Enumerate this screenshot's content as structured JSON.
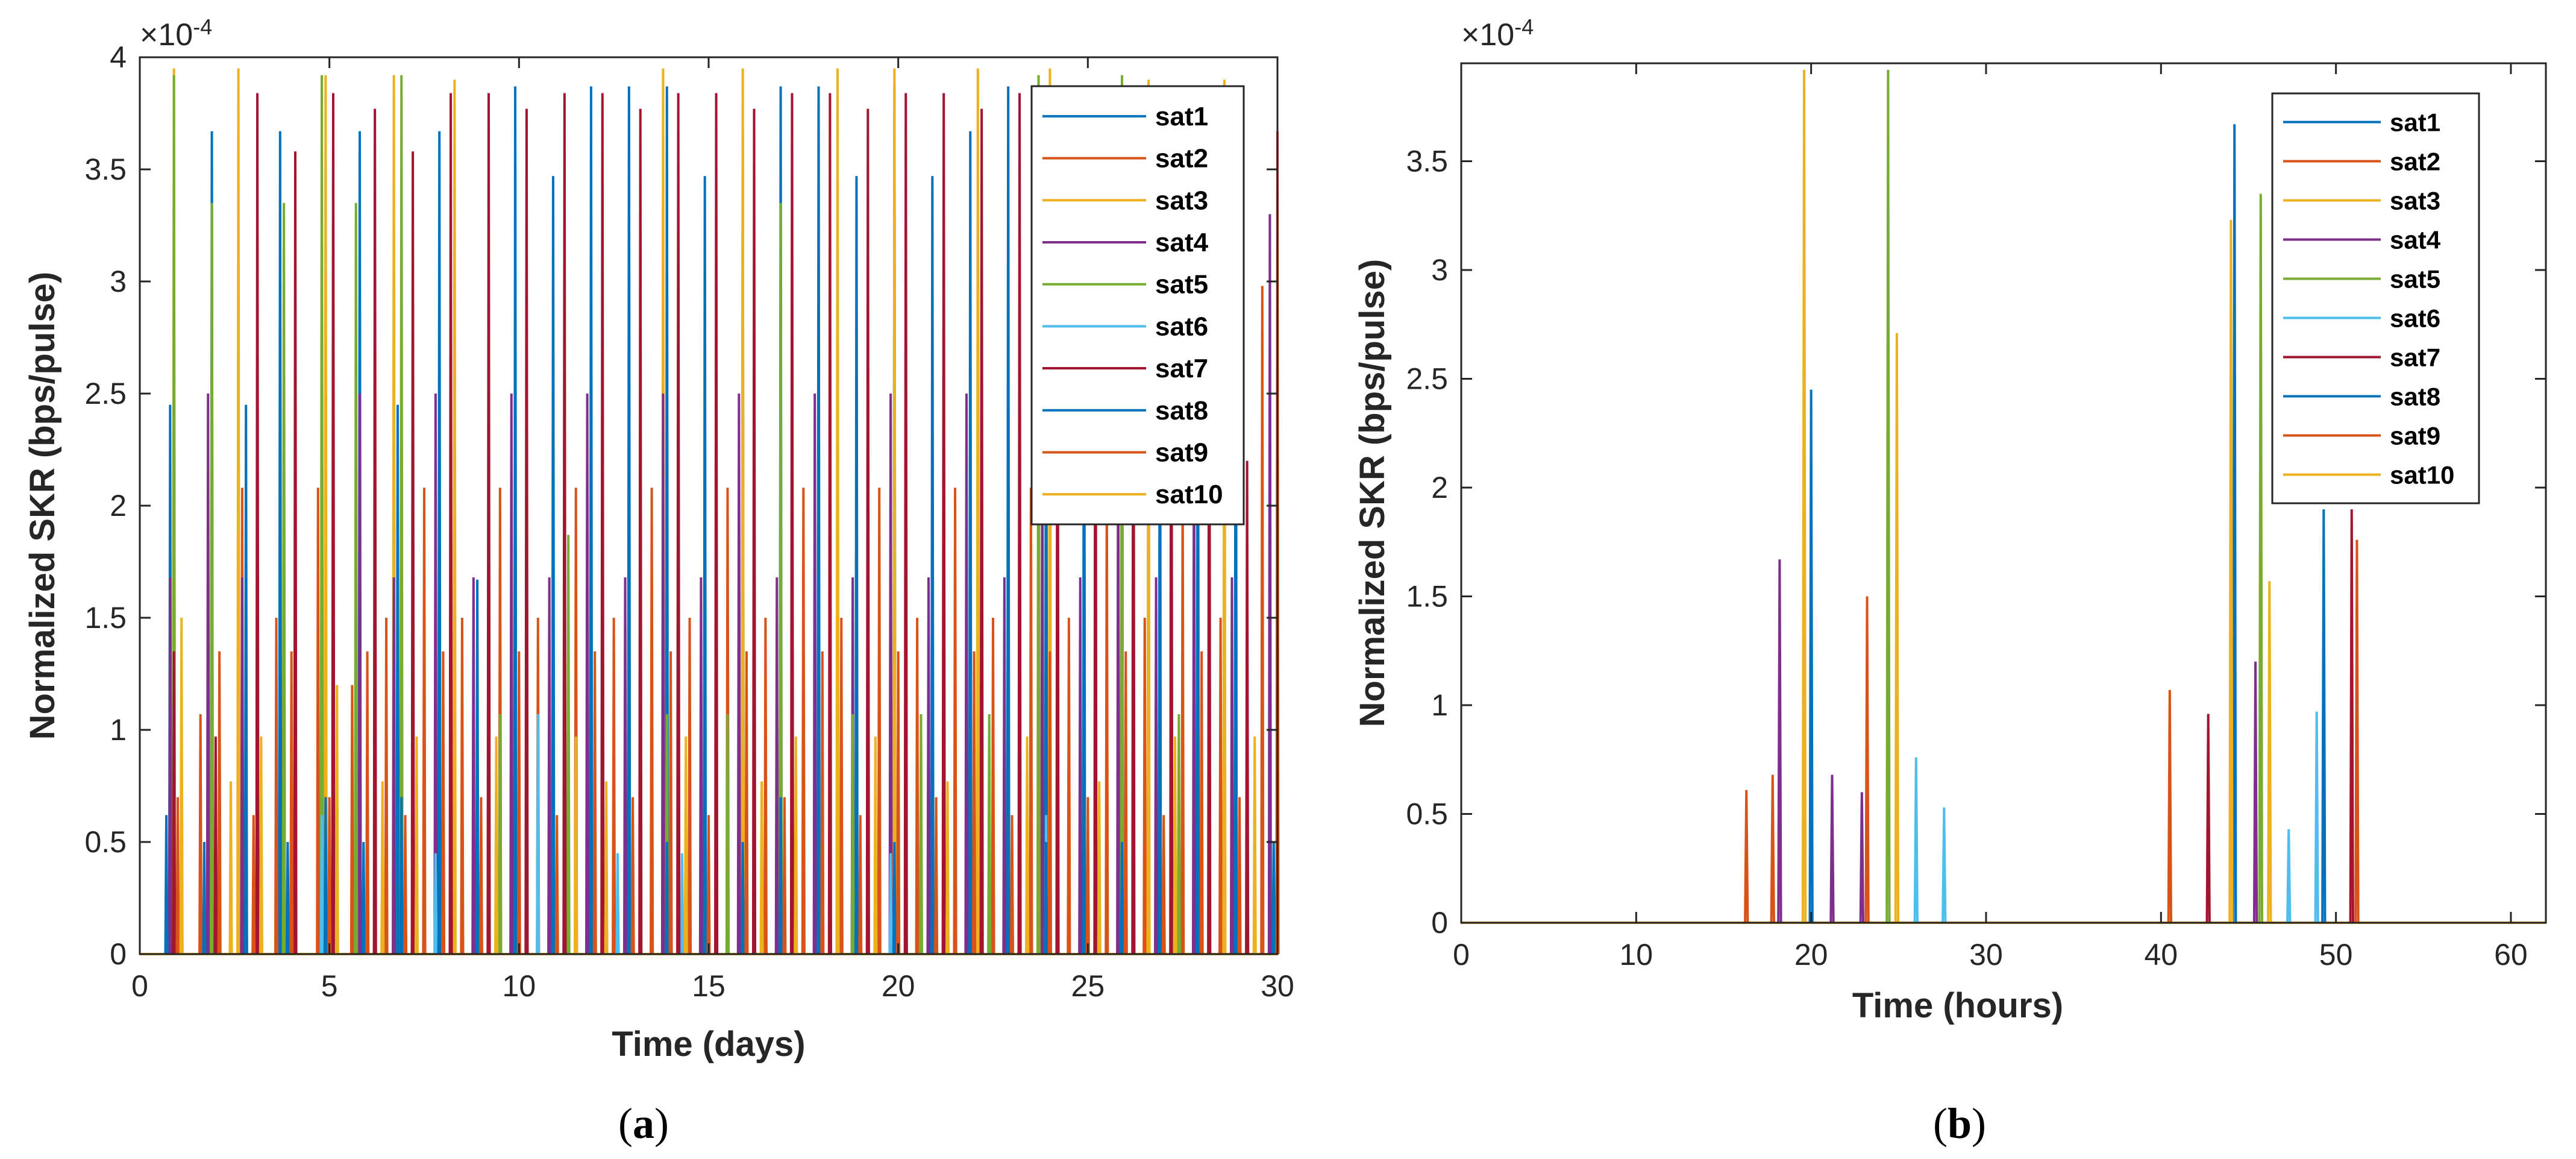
{
  "colors": [
    "#0072BD",
    "#D95319",
    "#EDB120",
    "#7E2F8E",
    "#77AC30",
    "#4DBEEE",
    "#A2142F",
    "#0072BD",
    "#D95319",
    "#EDB120"
  ],
  "chart_data": [
    {
      "type": "line",
      "panel_caption": [
        "(",
        "a",
        ")"
      ],
      "xlabel": "Time (days)",
      "ylabel": "Normalized SKR (bps/pulse)",
      "exponent_label": [
        "×10",
        "-4"
      ],
      "xlim": [
        0,
        30
      ],
      "ylim": [
        0,
        4
      ],
      "xticks": [
        "0",
        "5",
        "10",
        "15",
        "20",
        "25",
        "30"
      ],
      "yticks": [
        "0",
        "0.5",
        "1",
        "1.5",
        "2",
        "2.5",
        "3",
        "3.5",
        "4"
      ],
      "legend": [
        "sat1",
        "sat2",
        "sat3",
        "sat4",
        "sat5",
        "sat6",
        "sat7",
        "sat8",
        "sat9",
        "sat10"
      ],
      "legend_position": "top-right",
      "spike_width": 0.05,
      "series": [
        {
          "name": "sat1",
          "x": [
            0.8,
            1.9,
            2.8,
            3.7,
            4.9,
            5.8,
            6.8,
            7.9,
            8.9,
            9.9,
            10.9,
            11.9,
            12.9,
            13.9,
            14.9,
            15.9,
            16.9,
            17.9,
            18.9,
            19.9,
            20.9,
            21.9,
            22.9,
            23.9,
            24.9,
            25.9,
            26.9,
            27.9,
            28.9
          ],
          "y": [
            2.45,
            3.67,
            2.45,
            3.67,
            2.45,
            3.67,
            2.45,
            3.67,
            1.67,
            3.87,
            3.47,
            3.87,
            3.87,
            3.87,
            3.47,
            3.67,
            3.87,
            3.87,
            3.47,
            3.87,
            3.47,
            3.67,
            3.87,
            3.47,
            3.67,
            3.67,
            3.47,
            3.67,
            3.67
          ]
        },
        {
          "name": "sat2",
          "x": [
            1.6,
            2.7,
            3.6,
            4.7,
            5.6,
            6.5,
            7.5,
            8.5,
            9.5,
            10.5,
            11.5,
            12.5,
            13.5,
            14.5,
            15.5,
            16.5,
            17.5,
            18.5,
            19.5,
            20.5,
            21.5,
            22.5,
            23.5,
            24.5,
            25.5,
            26.5,
            27.5,
            28.5,
            29.6
          ],
          "y": [
            1.07,
            2.08,
            1.5,
            2.08,
            1.2,
            1.5,
            2.08,
            1.5,
            2.08,
            1.5,
            2.08,
            1.5,
            2.08,
            1.5,
            2.08,
            1.5,
            2.08,
            1.5,
            2.08,
            1.5,
            2.08,
            1.5,
            2.08,
            1.5,
            2.08,
            1.5,
            2.08,
            1.5,
            2.98
          ]
        },
        {
          "name": "sat3",
          "x": [
            0.9,
            2.6,
            4.9,
            6.7,
            8.3,
            13.8,
            15.9,
            18.4,
            19.9,
            22.1,
            24.0,
            26.6,
            28.6
          ],
          "y": [
            3.95,
            3.95,
            3.92,
            3.92,
            3.9,
            3.95,
            3.95,
            3.95,
            3.95,
            3.95,
            3.95,
            3.9,
            3.9
          ]
        },
        {
          "name": "sat4",
          "x": [
            0.8,
            1.8,
            2.7,
            3.8,
            4.8,
            5.8,
            6.7,
            7.8,
            8.8,
            9.8,
            10.8,
            11.8,
            12.8,
            13.8,
            14.8,
            15.8,
            16.8,
            17.8,
            18.8,
            19.8,
            20.8,
            21.8,
            22.8,
            23.8,
            24.8,
            25.8,
            26.8,
            27.8,
            28.8,
            29.8
          ],
          "y": [
            1.68,
            2.5,
            1.68,
            2.5,
            1.68,
            2.5,
            1.68,
            2.5,
            1.68,
            2.5,
            1.68,
            2.5,
            1.68,
            2.5,
            1.68,
            2.5,
            1.68,
            2.5,
            1.68,
            2.5,
            1.68,
            2.5,
            1.68,
            2.5,
            1.68,
            2.5,
            1.68,
            2.5,
            1.68,
            3.3
          ]
        },
        {
          "name": "sat5",
          "x": [
            0.9,
            1.9,
            3.8,
            4.8,
            5.7,
            6.9,
            9.5,
            11.3,
            13.9,
            15.5,
            16.9,
            18.8,
            20.6,
            22.4,
            23.7,
            25.9,
            27.4
          ],
          "y": [
            3.92,
            3.35,
            3.35,
            3.92,
            3.35,
            3.92,
            1.07,
            1.87,
            1.07,
            1.07,
            3.35,
            1.07,
            1.07,
            1.07,
            3.92,
            3.92,
            1.07
          ]
        },
        {
          "name": "sat6",
          "x": [
            1.1,
            3.1,
            4.8,
            7.8,
            10.5,
            12.6,
            14.3,
            16.9,
            19.8,
            22.0,
            23.9
          ],
          "y": [
            0.55,
            0.45,
            0.62,
            0.45,
            1.07,
            0.45,
            0.45,
            0.45,
            0.45,
            0.45,
            0.62
          ]
        },
        {
          "name": "sat7",
          "x": [
            0.9,
            2.0,
            3.1,
            4.1,
            5.1,
            6.2,
            7.2,
            8.2,
            9.2,
            10.2,
            11.2,
            12.2,
            13.2,
            14.2,
            15.2,
            16.2,
            17.2,
            18.2,
            19.2,
            20.2,
            21.2,
            22.2,
            23.2,
            24.2,
            25.2,
            26.2,
            27.2,
            28.2,
            29.2
          ],
          "y": [
            1.35,
            0.97,
            3.84,
            3.58,
            3.84,
            3.77,
            3.58,
            3.84,
            3.84,
            3.77,
            3.84,
            3.84,
            3.77,
            3.84,
            3.84,
            3.77,
            3.84,
            3.84,
            3.77,
            3.84,
            3.84,
            3.77,
            3.84,
            3.84,
            3.77,
            3.84,
            3.84,
            3.77,
            2.2
          ]
        },
        {
          "name": "sat8",
          "x": [
            0.7,
            1.7,
            2.8,
            3.9,
            4.9,
            5.9,
            6.9,
            7.9,
            8.9,
            9.9,
            10.9,
            11.9,
            12.9,
            13.9,
            14.9,
            15.9,
            16.9,
            17.9,
            18.9,
            19.9,
            20.9,
            21.9,
            22.9,
            23.9,
            24.9,
            25.9,
            26.9,
            27.9,
            28.9,
            29.9
          ],
          "y": [
            0.62,
            0.5,
            0.7,
            0.5,
            0.7,
            0.5,
            0.7,
            0.5,
            0.7,
            0.5,
            0.7,
            0.5,
            0.7,
            0.5,
            0.7,
            0.5,
            0.7,
            0.5,
            0.7,
            0.5,
            0.7,
            0.5,
            0.7,
            0.5,
            0.7,
            0.5,
            0.7,
            0.5,
            0.7,
            0.5
          ]
        },
        {
          "name": "sat9",
          "x": [
            1.0,
            2.1,
            3.0,
            4.0,
            5.0,
            6.0,
            7.0,
            8.0,
            9.0,
            10.0,
            11.0,
            12.0,
            13.0,
            14.0,
            15.0,
            16.0,
            17.0,
            18.0,
            19.0,
            20.0,
            21.0,
            22.0,
            23.0,
            24.0,
            25.0,
            26.0,
            27.0,
            28.0,
            29.0,
            30.0
          ],
          "y": [
            0.7,
            1.35,
            0.62,
            1.35,
            0.7,
            1.35,
            0.62,
            1.35,
            0.7,
            1.35,
            0.62,
            1.35,
            0.7,
            1.35,
            0.62,
            1.35,
            0.7,
            1.35,
            0.62,
            1.35,
            0.7,
            1.35,
            0.62,
            1.35,
            0.7,
            1.35,
            0.62,
            1.35,
            0.7,
            3.67
          ]
        },
        {
          "name": "sat10",
          "x": [
            1.1,
            2.4,
            3.2,
            5.2,
            6.4,
            7.3,
            9.4,
            11.5,
            12.3,
            14.4,
            16.4,
            17.3,
            19.4,
            21.3,
            23.4,
            25.3,
            27.3,
            29.4
          ],
          "y": [
            1.5,
            0.77,
            0.97,
            1.2,
            0.77,
            0.97,
            0.97,
            0.97,
            0.77,
            0.97,
            0.77,
            0.97,
            0.97,
            0.77,
            0.97,
            0.77,
            0.97,
            0.97
          ]
        }
      ]
    },
    {
      "type": "line",
      "panel_caption": [
        "(",
        "b",
        ")"
      ],
      "xlabel": "Time (hours)",
      "ylabel": "Normalized SKR (bps/pulse)",
      "exponent_label": [
        "×10",
        "-4"
      ],
      "xlim": [
        0,
        62
      ],
      "ylim": [
        0,
        3.95
      ],
      "xticks": [
        "0",
        "10",
        "20",
        "30",
        "40",
        "50",
        "60"
      ],
      "yticks": [
        "0",
        "0.5",
        "1",
        "1.5",
        "2",
        "2.5",
        "3",
        "3.5"
      ],
      "legend": [
        "sat1",
        "sat2",
        "sat3",
        "sat4",
        "sat5",
        "sat6",
        "sat7",
        "sat8",
        "sat9",
        "sat10"
      ],
      "legend_position": "top-right",
      "spike_width": 0.15,
      "series": [
        {
          "name": "sat1",
          "x": [
            20.0,
            44.2
          ],
          "y": [
            2.45,
            3.67
          ]
        },
        {
          "name": "sat2",
          "x": [
            16.3,
            23.2,
            40.5
          ],
          "y": [
            0.61,
            1.5,
            1.07
          ]
        },
        {
          "name": "sat3",
          "x": [
            19.6,
            44.0
          ],
          "y": [
            3.92,
            3.23
          ]
        },
        {
          "name": "sat4",
          "x": [
            18.2,
            21.2,
            22.9,
            45.4
          ],
          "y": [
            1.67,
            0.68,
            0.6,
            1.2
          ]
        },
        {
          "name": "sat5",
          "x": [
            24.4,
            45.7
          ],
          "y": [
            3.92,
            3.35
          ]
        },
        {
          "name": "sat6",
          "x": [
            26.0,
            27.6,
            47.3,
            48.9
          ],
          "y": [
            0.76,
            0.53,
            0.43,
            0.97
          ]
        },
        {
          "name": "sat7",
          "x": [
            42.7,
            50.9
          ],
          "y": [
            0.96,
            1.9
          ]
        },
        {
          "name": "sat8",
          "x": [
            49.3
          ],
          "y": [
            1.9
          ]
        },
        {
          "name": "sat9",
          "x": [
            17.8,
            51.2
          ],
          "y": [
            0.68,
            1.76
          ]
        },
        {
          "name": "sat10",
          "x": [
            24.9,
            46.2
          ],
          "y": [
            2.71,
            1.57
          ]
        }
      ]
    }
  ]
}
